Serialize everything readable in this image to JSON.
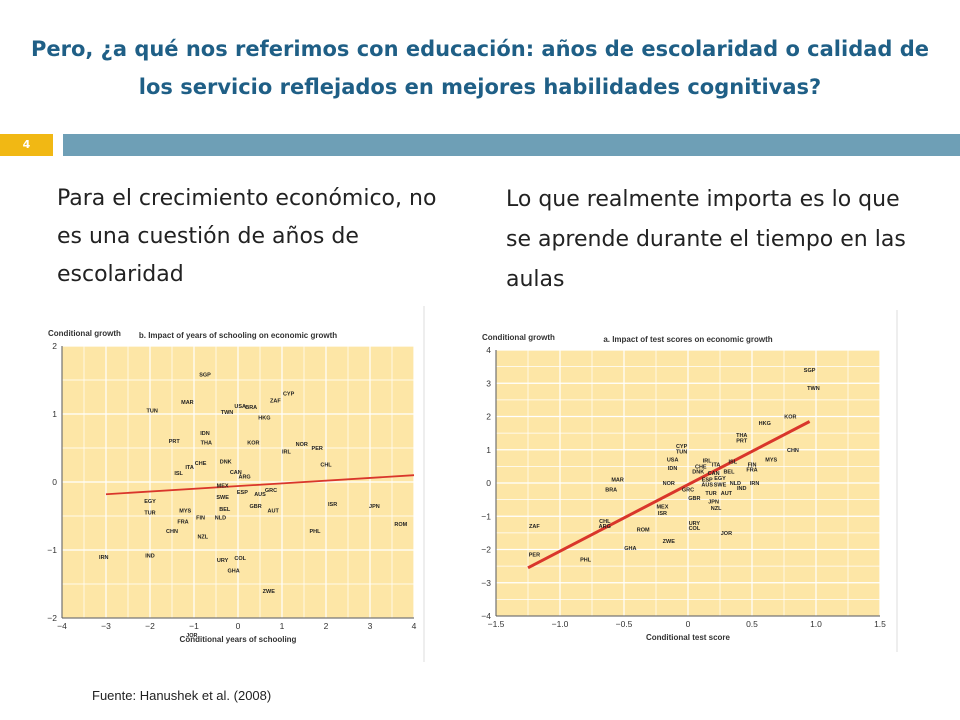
{
  "slide": {
    "title": "Pero, ¿a qué nos referimos con educación: años de escolaridad o calidad de los servicio reflejados en mejores habilidades cognitivas?",
    "slide_number": "4",
    "left_text": "Para el crecimiento económico, no es una cuestión de años de escolaridad",
    "right_text": "Lo que realmente importa es lo que se aprende durante el tiempo en las aulas",
    "source": "Fuente: Hanushek et al. (2008)",
    "colors": {
      "title": "#1f5f86",
      "accent": "#f1b814",
      "strip": "#6e9fb6",
      "plot_bg": "#fde6a6",
      "grid": "#ffffff",
      "line": "#d9362b"
    }
  },
  "chart_data": [
    {
      "type": "scatter",
      "title": "b. Impact of years of schooling on economic growth",
      "xlabel": "Conditional years of schooling",
      "ylabel": "Conditional growth",
      "xlim": [
        -4,
        4
      ],
      "ylim": [
        -2,
        2
      ],
      "xticks": [
        -4,
        -3,
        -2,
        -1,
        0,
        1,
        2,
        3,
        4
      ],
      "yticks": [
        -2,
        -1,
        0,
        1,
        2
      ],
      "xtick_labels": [
        "−4",
        "−3",
        "−2",
        "−1",
        "0",
        "1",
        "2",
        "3",
        "4"
      ],
      "ytick_labels": [
        "−2",
        "−1",
        "0",
        "1",
        "2"
      ],
      "grid": true,
      "fit_line": [
        [
          -3,
          -0.18
        ],
        [
          4,
          0.1
        ]
      ],
      "points": [
        {
          "label": "SGP",
          "x": -0.75,
          "y": 1.58
        },
        {
          "label": "MAR",
          "x": -1.15,
          "y": 1.18
        },
        {
          "label": "TUN",
          "x": -1.95,
          "y": 1.05
        },
        {
          "label": "USA",
          "x": 0.05,
          "y": 1.12
        },
        {
          "label": "BRA",
          "x": 0.3,
          "y": 1.1
        },
        {
          "label": "CYP",
          "x": 1.15,
          "y": 1.3
        },
        {
          "label": "ZAF",
          "x": 0.85,
          "y": 1.2
        },
        {
          "label": "TWN",
          "x": -0.25,
          "y": 1.03
        },
        {
          "label": "HKG",
          "x": 0.6,
          "y": 0.95
        },
        {
          "label": "IDN",
          "x": -0.75,
          "y": 0.72
        },
        {
          "label": "THA",
          "x": -0.72,
          "y": 0.58
        },
        {
          "label": "PRT",
          "x": -1.45,
          "y": 0.6
        },
        {
          "label": "KOR",
          "x": 0.35,
          "y": 0.58
        },
        {
          "label": "IRL",
          "x": 1.1,
          "y": 0.45
        },
        {
          "label": "NOR",
          "x": 1.45,
          "y": 0.56
        },
        {
          "label": "PER",
          "x": 1.8,
          "y": 0.5
        },
        {
          "label": "CHL",
          "x": 2.0,
          "y": 0.26
        },
        {
          "label": "ITA",
          "x": -1.1,
          "y": 0.22
        },
        {
          "label": "CHE",
          "x": -0.85,
          "y": 0.28
        },
        {
          "label": "ISL",
          "x": -1.35,
          "y": 0.13
        },
        {
          "label": "DNK",
          "x": -0.28,
          "y": 0.3
        },
        {
          "label": "CAN",
          "x": -0.05,
          "y": 0.15
        },
        {
          "label": "ARG",
          "x": 0.15,
          "y": 0.08
        },
        {
          "label": "MEX",
          "x": -0.35,
          "y": -0.05
        },
        {
          "label": "ESP",
          "x": 0.1,
          "y": -0.15
        },
        {
          "label": "AUS",
          "x": 0.5,
          "y": -0.18
        },
        {
          "label": "GRC",
          "x": 0.75,
          "y": -0.12
        },
        {
          "label": "ISR",
          "x": 2.15,
          "y": -0.32
        },
        {
          "label": "SWE",
          "x": -0.35,
          "y": -0.22
        },
        {
          "label": "GBR",
          "x": 0.4,
          "y": -0.35
        },
        {
          "label": "BEL",
          "x": -0.3,
          "y": -0.4
        },
        {
          "label": "AUT",
          "x": 0.8,
          "y": -0.42
        },
        {
          "label": "NLD",
          "x": -0.4,
          "y": -0.52
        },
        {
          "label": "EGY",
          "x": -2.0,
          "y": -0.28
        },
        {
          "label": "TUR",
          "x": -2.0,
          "y": -0.45
        },
        {
          "label": "MYS",
          "x": -1.2,
          "y": -0.42
        },
        {
          "label": "FRA",
          "x": -1.25,
          "y": -0.58
        },
        {
          "label": "FIN",
          "x": -0.85,
          "y": -0.52
        },
        {
          "label": "JPN",
          "x": 3.1,
          "y": -0.35
        },
        {
          "label": "CHN",
          "x": -1.5,
          "y": -0.72
        },
        {
          "label": "NZL",
          "x": -0.8,
          "y": -0.8
        },
        {
          "label": "PHL",
          "x": 1.75,
          "y": -0.72
        },
        {
          "label": "ROM",
          "x": 3.7,
          "y": -0.62
        },
        {
          "label": "IRN",
          "x": -3.05,
          "y": -1.1
        },
        {
          "label": "IND",
          "x": -2.0,
          "y": -1.08
        },
        {
          "label": "URY",
          "x": -0.35,
          "y": -1.15
        },
        {
          "label": "COL",
          "x": 0.05,
          "y": -1.12
        },
        {
          "label": "GHA",
          "x": -0.1,
          "y": -1.3
        },
        {
          "label": "ZWE",
          "x": 0.7,
          "y": -1.6
        },
        {
          "label": "JOR",
          "x": -1.05,
          "y": -2.25
        }
      ]
    },
    {
      "type": "scatter",
      "title": "a. Impact of test scores on economic growth",
      "xlabel": "Conditional test score",
      "ylabel": "Conditional growth",
      "xlim": [
        -1.5,
        1.5
      ],
      "ylim": [
        -4,
        4
      ],
      "xticks": [
        -1.5,
        -1.0,
        -0.5,
        0,
        0.5,
        1.0,
        1.5
      ],
      "yticks": [
        -4,
        -3,
        -2,
        -1,
        0,
        1,
        2,
        3,
        4
      ],
      "xtick_labels": [
        "−1.5",
        "−1.0",
        "−0.5",
        "0",
        "0.5",
        "1.0",
        "1.5"
      ],
      "ytick_labels": [
        "−4",
        "−3",
        "−2",
        "−1",
        "0",
        "1",
        "2",
        "3",
        "4"
      ],
      "grid": true,
      "fit_line": [
        [
          -1.25,
          -2.55
        ],
        [
          0.95,
          1.85
        ]
      ],
      "points": [
        {
          "label": "SGP",
          "x": 0.95,
          "y": 3.4
        },
        {
          "label": "TWN",
          "x": 0.98,
          "y": 2.85
        },
        {
          "label": "KOR",
          "x": 0.8,
          "y": 2.0
        },
        {
          "label": "HKG",
          "x": 0.6,
          "y": 1.8
        },
        {
          "label": "CHN",
          "x": 0.82,
          "y": 1.0
        },
        {
          "label": "THA",
          "x": 0.42,
          "y": 1.45
        },
        {
          "label": "PRT",
          "x": 0.42,
          "y": 1.28
        },
        {
          "label": "MYS",
          "x": 0.65,
          "y": 0.7
        },
        {
          "label": "CYP",
          "x": -0.05,
          "y": 1.12
        },
        {
          "label": "TUN",
          "x": -0.05,
          "y": 0.95
        },
        {
          "label": "USA",
          "x": -0.12,
          "y": 0.7
        },
        {
          "label": "IDN",
          "x": -0.12,
          "y": 0.45
        },
        {
          "label": "IRL",
          "x": 0.15,
          "y": 0.68
        },
        {
          "label": "ISL",
          "x": 0.35,
          "y": 0.65
        },
        {
          "label": "FIN",
          "x": 0.5,
          "y": 0.55
        },
        {
          "label": "CHE",
          "x": 0.1,
          "y": 0.5
        },
        {
          "label": "ITA",
          "x": 0.22,
          "y": 0.55
        },
        {
          "label": "FRA",
          "x": 0.5,
          "y": 0.4
        },
        {
          "label": "BEL",
          "x": 0.32,
          "y": 0.35
        },
        {
          "label": "DNK",
          "x": 0.08,
          "y": 0.35
        },
        {
          "label": "CAN",
          "x": 0.2,
          "y": 0.3
        },
        {
          "label": "NOR",
          "x": -0.15,
          "y": 0.0
        },
        {
          "label": "ESP",
          "x": 0.15,
          "y": 0.1
        },
        {
          "label": "EGY",
          "x": 0.25,
          "y": 0.15
        },
        {
          "label": "AUS",
          "x": 0.15,
          "y": -0.05
        },
        {
          "label": "SWE",
          "x": 0.25,
          "y": -0.05
        },
        {
          "label": "NLD",
          "x": 0.37,
          "y": 0.0
        },
        {
          "label": "IRN",
          "x": 0.52,
          "y": 0.0
        },
        {
          "label": "GRC",
          "x": 0.0,
          "y": -0.2
        },
        {
          "label": "IND",
          "x": 0.42,
          "y": -0.15
        },
        {
          "label": "TUR",
          "x": 0.18,
          "y": -0.3
        },
        {
          "label": "AUT",
          "x": 0.3,
          "y": -0.3
        },
        {
          "label": "GBR",
          "x": 0.05,
          "y": -0.45
        },
        {
          "label": "JPN",
          "x": 0.2,
          "y": -0.55
        },
        {
          "label": "NZL",
          "x": 0.22,
          "y": -0.75
        },
        {
          "label": "MAR",
          "x": -0.55,
          "y": 0.1
        },
        {
          "label": "BRA",
          "x": -0.6,
          "y": -0.2
        },
        {
          "label": "MEX",
          "x": -0.2,
          "y": -0.7
        },
        {
          "label": "ISR",
          "x": -0.2,
          "y": -0.9
        },
        {
          "label": "ZAF",
          "x": -1.2,
          "y": -1.3
        },
        {
          "label": "CHL",
          "x": -0.65,
          "y": -1.15
        },
        {
          "label": "ARG",
          "x": -0.65,
          "y": -1.3
        },
        {
          "label": "ROM",
          "x": -0.35,
          "y": -1.4
        },
        {
          "label": "URY",
          "x": 0.05,
          "y": -1.2
        },
        {
          "label": "COL",
          "x": 0.05,
          "y": -1.35
        },
        {
          "label": "JOR",
          "x": 0.3,
          "y": -1.5
        },
        {
          "label": "ZWE",
          "x": -0.15,
          "y": -1.75
        },
        {
          "label": "GHA",
          "x": -0.45,
          "y": -1.95
        },
        {
          "label": "PER",
          "x": -1.2,
          "y": -2.15
        },
        {
          "label": "PHL",
          "x": -0.8,
          "y": -2.3
        }
      ]
    }
  ]
}
